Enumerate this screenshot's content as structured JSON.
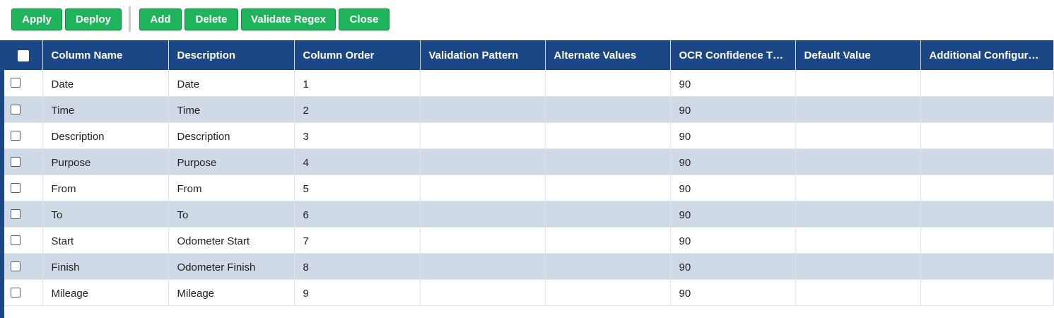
{
  "toolbar": {
    "buttons": [
      {
        "label": "Apply"
      },
      {
        "label": "Deploy"
      },
      {
        "label": "Add"
      },
      {
        "label": "Delete"
      },
      {
        "label": "Validate Regex"
      },
      {
        "label": "Close"
      }
    ],
    "button_color": "#1fb35c"
  },
  "grid": {
    "header_color": "#1b4787",
    "alt_row_color": "#d0dae6",
    "columns": [
      "Column Name",
      "Description",
      "Column Order",
      "Validation Pattern",
      "Alternate Values",
      "OCR Confidence Thr...",
      "Default Value",
      "Additional Configurati..."
    ],
    "rows": [
      {
        "name": "Date",
        "description": "Date",
        "order": "1",
        "pattern": "",
        "alternate": "",
        "ocr": "90",
        "default": "",
        "additional": ""
      },
      {
        "name": "Time",
        "description": "Time",
        "order": "2",
        "pattern": "",
        "alternate": "",
        "ocr": "90",
        "default": "",
        "additional": ""
      },
      {
        "name": "Description",
        "description": "Description",
        "order": "3",
        "pattern": "",
        "alternate": "",
        "ocr": "90",
        "default": "",
        "additional": ""
      },
      {
        "name": "Purpose",
        "description": "Purpose",
        "order": "4",
        "pattern": "",
        "alternate": "",
        "ocr": "90",
        "default": "",
        "additional": ""
      },
      {
        "name": "From",
        "description": "From",
        "order": "5",
        "pattern": "",
        "alternate": "",
        "ocr": "90",
        "default": "",
        "additional": ""
      },
      {
        "name": "To",
        "description": "To",
        "order": "6",
        "pattern": "",
        "alternate": "",
        "ocr": "90",
        "default": "",
        "additional": ""
      },
      {
        "name": "Start",
        "description": "Odometer Start",
        "order": "7",
        "pattern": "",
        "alternate": "",
        "ocr": "90",
        "default": "",
        "additional": ""
      },
      {
        "name": "Finish",
        "description": "Odometer Finish",
        "order": "8",
        "pattern": "",
        "alternate": "",
        "ocr": "90",
        "default": "",
        "additional": ""
      },
      {
        "name": "Mileage",
        "description": "Mileage",
        "order": "9",
        "pattern": "",
        "alternate": "",
        "ocr": "90",
        "default": "",
        "additional": ""
      }
    ]
  }
}
